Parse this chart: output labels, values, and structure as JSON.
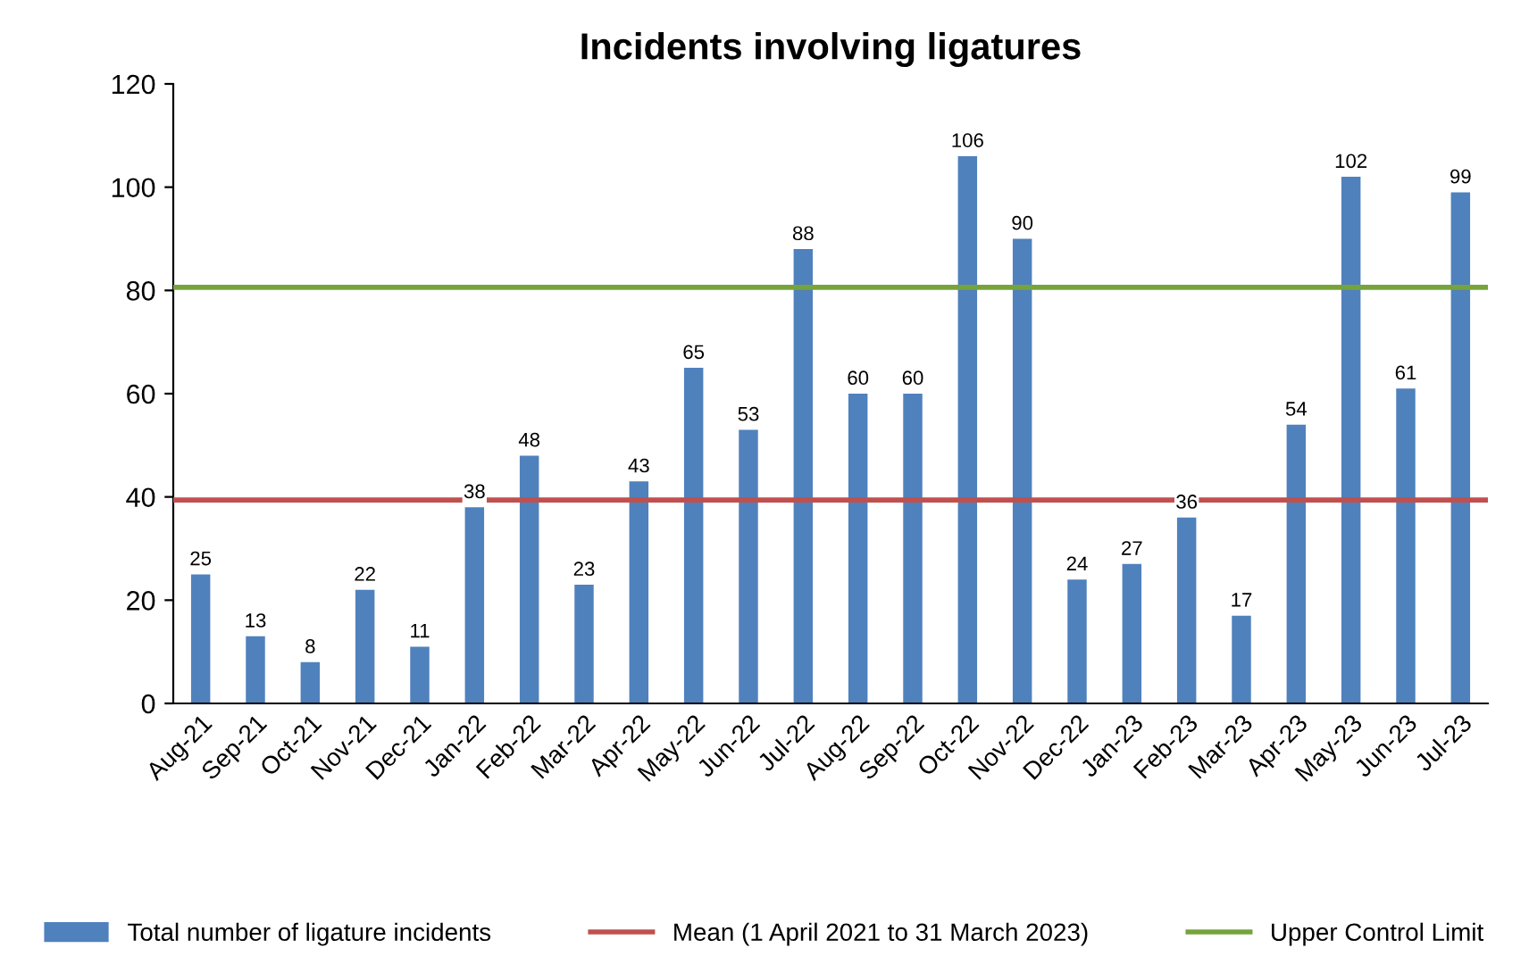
{
  "chart_data": {
    "type": "bar",
    "title": "Incidents involving ligatures",
    "categories": [
      "Aug-21",
      "Sep-21",
      "Oct-21",
      "Nov-21",
      "Dec-21",
      "Jan-22",
      "Feb-22",
      "Mar-22",
      "Apr-22",
      "May-22",
      "Jun-22",
      "Jul-22",
      "Aug-22",
      "Sep-22",
      "Oct-22",
      "Nov-22",
      "Dec-22",
      "Jan-23",
      "Feb-23",
      "Mar-23",
      "Apr-23",
      "May-23",
      "Jun-23",
      "Jul-23"
    ],
    "series": [
      {
        "name": "Total number of ligature incidents",
        "color": "#4f81bd",
        "values": [
          25,
          13,
          8,
          22,
          11,
          38,
          48,
          23,
          43,
          65,
          53,
          88,
          60,
          60,
          106,
          90,
          24,
          27,
          36,
          17,
          54,
          102,
          61,
          99
        ]
      }
    ],
    "ref_lines": [
      {
        "axis": "y",
        "value": 39.4,
        "label": "Mean (1 April 2021 to 31 March 2023)",
        "color": "#c0504d",
        "line_style": "solid"
      },
      {
        "axis": "y",
        "value": 80.6,
        "label": "Upper Control Limit",
        "color": "#77a33c",
        "line_style": "solid"
      }
    ],
    "ylim": [
      0,
      120
    ],
    "yticks": [
      0,
      20,
      40,
      60,
      80,
      100,
      120
    ],
    "data_labels": true,
    "grid": false,
    "legend": "bottom"
  }
}
